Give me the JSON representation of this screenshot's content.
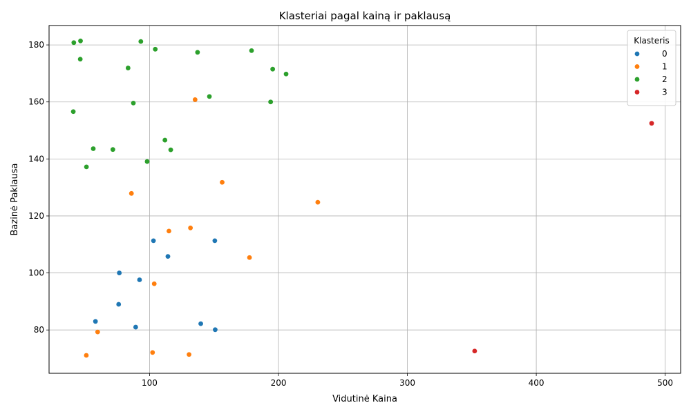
{
  "chart_data": {
    "type": "scatter",
    "title": "Klasteriai pagal kainą ir paklausą",
    "xlabel": "Vidutinė Kaina",
    "ylabel": "Bazinė Paklausa",
    "xlim": [
      22,
      512
    ],
    "ylim": [
      64.8,
      186.8
    ],
    "xticks": [
      100,
      200,
      300,
      400,
      500
    ],
    "yticks": [
      80,
      100,
      120,
      140,
      160,
      180
    ],
    "grid": true,
    "legend": {
      "title": "Klasteris",
      "placement": "top-right"
    },
    "series": [
      {
        "name": "0",
        "color": "#1f77b4",
        "points": [
          [
            103.0,
            111.3
          ],
          [
            150.6,
            111.3
          ],
          [
            114.2,
            105.8
          ],
          [
            76.5,
            100.0
          ],
          [
            92.2,
            97.6
          ],
          [
            76.0,
            89.0
          ],
          [
            58.0,
            83.0
          ],
          [
            89.2,
            81.0
          ],
          [
            139.7,
            82.2
          ],
          [
            150.9,
            80.1
          ]
        ]
      },
      {
        "name": "1",
        "color": "#ff7f0e",
        "points": [
          [
            135.3,
            160.8
          ],
          [
            156.3,
            131.8
          ],
          [
            85.9,
            127.9
          ],
          [
            230.5,
            124.8
          ],
          [
            131.7,
            115.8
          ],
          [
            115.0,
            114.7
          ],
          [
            177.5,
            105.4
          ],
          [
            103.6,
            96.2
          ],
          [
            59.7,
            79.3
          ],
          [
            50.9,
            71.1
          ],
          [
            102.3,
            72.1
          ],
          [
            130.6,
            71.4
          ]
        ]
      },
      {
        "name": "2",
        "color": "#2ca02c",
        "points": [
          [
            41.2,
            180.8
          ],
          [
            46.4,
            181.4
          ],
          [
            93.2,
            181.2
          ],
          [
            104.4,
            178.5
          ],
          [
            137.2,
            177.4
          ],
          [
            179.1,
            178.0
          ],
          [
            46.2,
            175.0
          ],
          [
            83.3,
            171.9
          ],
          [
            195.5,
            171.5
          ],
          [
            205.9,
            169.8
          ],
          [
            146.4,
            161.9
          ],
          [
            87.4,
            159.6
          ],
          [
            193.9,
            160.0
          ],
          [
            40.8,
            156.6
          ],
          [
            111.9,
            146.6
          ],
          [
            56.3,
            143.6
          ],
          [
            71.5,
            143.3
          ],
          [
            116.4,
            143.2
          ],
          [
            98.1,
            139.1
          ],
          [
            51.0,
            137.2
          ]
        ]
      },
      {
        "name": "3",
        "color": "#d62728",
        "points": [
          [
            489.5,
            152.5
          ],
          [
            352.2,
            72.6
          ]
        ]
      }
    ]
  }
}
